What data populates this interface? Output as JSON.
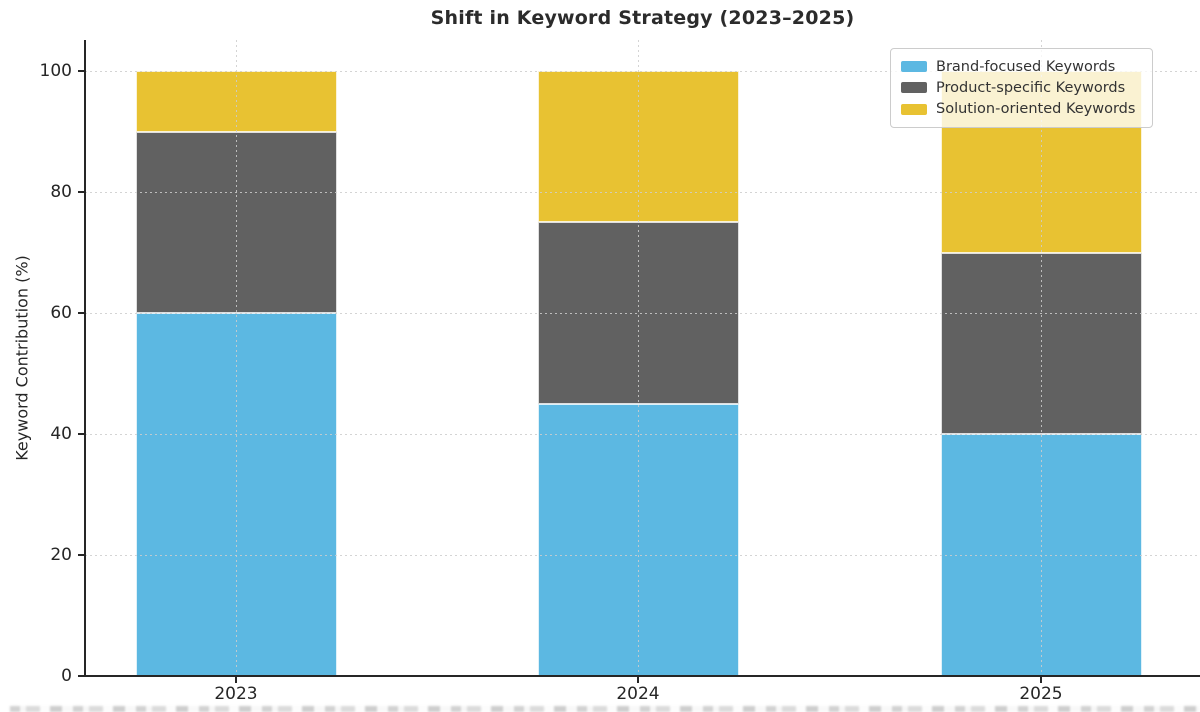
{
  "page": {
    "background": "#ffffff"
  },
  "chart_data": {
    "type": "bar",
    "stacked": true,
    "title": "Shift in Keyword Strategy (2023–2025)",
    "ylabel": "Keyword Contribution (%)",
    "xlabel": "",
    "categories": [
      "2023",
      "2024",
      "2025"
    ],
    "series": [
      {
        "name": "Brand-focused Keywords",
        "color": "#5CB8E2",
        "values": [
          60,
          45,
          40
        ]
      },
      {
        "name": "Product-specific Keywords",
        "color": "#616161",
        "values": [
          30,
          30,
          30
        ]
      },
      {
        "name": "Solution-oriented Keywords",
        "color": "#E8C232",
        "values": [
          10,
          25,
          30
        ]
      }
    ],
    "ylim": [
      0,
      105
    ],
    "yticks": [
      0,
      20,
      40,
      60,
      80,
      100
    ],
    "grid": true,
    "grid_style": "dotted",
    "grid_above_bars": true,
    "legend_position": "upper right",
    "axis_color": "#262626",
    "grid_color": "#cdcdcd",
    "text_color": "#262626"
  }
}
